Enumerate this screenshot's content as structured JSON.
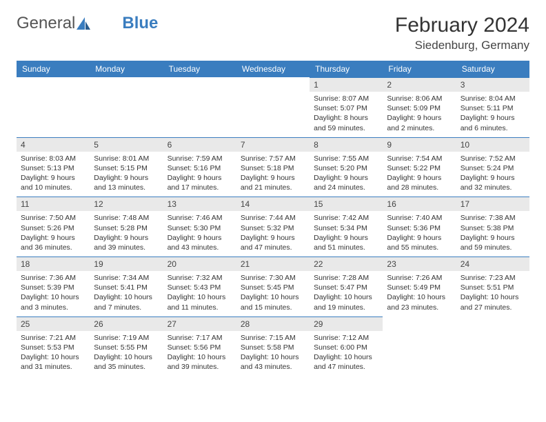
{
  "brand": {
    "part1": "General",
    "part2": "Blue"
  },
  "title": "February 2024",
  "location": "Siedenburg, Germany",
  "colors": {
    "header_bg": "#3a7dbf",
    "daynum_bg": "#e9e9e9",
    "daynum_border": "#3a7dbf",
    "text": "#333333",
    "bg": "#ffffff"
  },
  "weekdays": [
    "Sunday",
    "Monday",
    "Tuesday",
    "Wednesday",
    "Thursday",
    "Friday",
    "Saturday"
  ],
  "weeks": [
    [
      null,
      null,
      null,
      null,
      {
        "n": "1",
        "sr": "8:07 AM",
        "ss": "5:07 PM",
        "d1": "8 hours",
        "d2": "and 59 minutes."
      },
      {
        "n": "2",
        "sr": "8:06 AM",
        "ss": "5:09 PM",
        "d1": "9 hours",
        "d2": "and 2 minutes."
      },
      {
        "n": "3",
        "sr": "8:04 AM",
        "ss": "5:11 PM",
        "d1": "9 hours",
        "d2": "and 6 minutes."
      }
    ],
    [
      {
        "n": "4",
        "sr": "8:03 AM",
        "ss": "5:13 PM",
        "d1": "9 hours",
        "d2": "and 10 minutes."
      },
      {
        "n": "5",
        "sr": "8:01 AM",
        "ss": "5:15 PM",
        "d1": "9 hours",
        "d2": "and 13 minutes."
      },
      {
        "n": "6",
        "sr": "7:59 AM",
        "ss": "5:16 PM",
        "d1": "9 hours",
        "d2": "and 17 minutes."
      },
      {
        "n": "7",
        "sr": "7:57 AM",
        "ss": "5:18 PM",
        "d1": "9 hours",
        "d2": "and 21 minutes."
      },
      {
        "n": "8",
        "sr": "7:55 AM",
        "ss": "5:20 PM",
        "d1": "9 hours",
        "d2": "and 24 minutes."
      },
      {
        "n": "9",
        "sr": "7:54 AM",
        "ss": "5:22 PM",
        "d1": "9 hours",
        "d2": "and 28 minutes."
      },
      {
        "n": "10",
        "sr": "7:52 AM",
        "ss": "5:24 PM",
        "d1": "9 hours",
        "d2": "and 32 minutes."
      }
    ],
    [
      {
        "n": "11",
        "sr": "7:50 AM",
        "ss": "5:26 PM",
        "d1": "9 hours",
        "d2": "and 36 minutes."
      },
      {
        "n": "12",
        "sr": "7:48 AM",
        "ss": "5:28 PM",
        "d1": "9 hours",
        "d2": "and 39 minutes."
      },
      {
        "n": "13",
        "sr": "7:46 AM",
        "ss": "5:30 PM",
        "d1": "9 hours",
        "d2": "and 43 minutes."
      },
      {
        "n": "14",
        "sr": "7:44 AM",
        "ss": "5:32 PM",
        "d1": "9 hours",
        "d2": "and 47 minutes."
      },
      {
        "n": "15",
        "sr": "7:42 AM",
        "ss": "5:34 PM",
        "d1": "9 hours",
        "d2": "and 51 minutes."
      },
      {
        "n": "16",
        "sr": "7:40 AM",
        "ss": "5:36 PM",
        "d1": "9 hours",
        "d2": "and 55 minutes."
      },
      {
        "n": "17",
        "sr": "7:38 AM",
        "ss": "5:38 PM",
        "d1": "9 hours",
        "d2": "and 59 minutes."
      }
    ],
    [
      {
        "n": "18",
        "sr": "7:36 AM",
        "ss": "5:39 PM",
        "d1": "10 hours",
        "d2": "and 3 minutes."
      },
      {
        "n": "19",
        "sr": "7:34 AM",
        "ss": "5:41 PM",
        "d1": "10 hours",
        "d2": "and 7 minutes."
      },
      {
        "n": "20",
        "sr": "7:32 AM",
        "ss": "5:43 PM",
        "d1": "10 hours",
        "d2": "and 11 minutes."
      },
      {
        "n": "21",
        "sr": "7:30 AM",
        "ss": "5:45 PM",
        "d1": "10 hours",
        "d2": "and 15 minutes."
      },
      {
        "n": "22",
        "sr": "7:28 AM",
        "ss": "5:47 PM",
        "d1": "10 hours",
        "d2": "and 19 minutes."
      },
      {
        "n": "23",
        "sr": "7:26 AM",
        "ss": "5:49 PM",
        "d1": "10 hours",
        "d2": "and 23 minutes."
      },
      {
        "n": "24",
        "sr": "7:23 AM",
        "ss": "5:51 PM",
        "d1": "10 hours",
        "d2": "and 27 minutes."
      }
    ],
    [
      {
        "n": "25",
        "sr": "7:21 AM",
        "ss": "5:53 PM",
        "d1": "10 hours",
        "d2": "and 31 minutes."
      },
      {
        "n": "26",
        "sr": "7:19 AM",
        "ss": "5:55 PM",
        "d1": "10 hours",
        "d2": "and 35 minutes."
      },
      {
        "n": "27",
        "sr": "7:17 AM",
        "ss": "5:56 PM",
        "d1": "10 hours",
        "d2": "and 39 minutes."
      },
      {
        "n": "28",
        "sr": "7:15 AM",
        "ss": "5:58 PM",
        "d1": "10 hours",
        "d2": "and 43 minutes."
      },
      {
        "n": "29",
        "sr": "7:12 AM",
        "ss": "6:00 PM",
        "d1": "10 hours",
        "d2": "and 47 minutes."
      },
      null,
      null
    ]
  ],
  "labels": {
    "sunrise": "Sunrise: ",
    "sunset": "Sunset: ",
    "daylight": "Daylight: "
  }
}
